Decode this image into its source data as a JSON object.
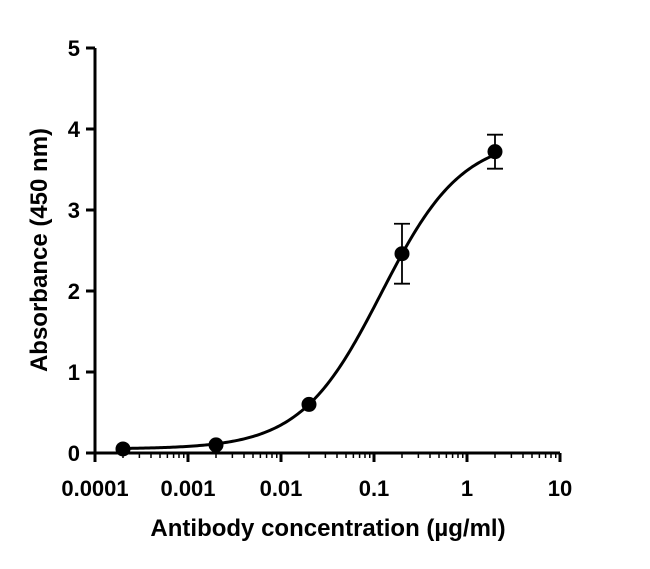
{
  "chart_data": {
    "type": "scatter",
    "title": "",
    "xlabel": "Antibody concentration (µg/ml)",
    "ylabel": "Absorbance (450 nm)",
    "x_scale": "log",
    "xlim": [
      0.0001,
      10
    ],
    "ylim": [
      0,
      5
    ],
    "x_ticks": [
      0.0001,
      0.001,
      0.01,
      0.1,
      1,
      10
    ],
    "x_tick_labels": [
      "0.0001",
      "0.001",
      "0.01",
      "0.1",
      "1",
      "10"
    ],
    "y_ticks": [
      0,
      1,
      2,
      3,
      4,
      5
    ],
    "y_tick_labels": [
      "0",
      "1",
      "2",
      "3",
      "4",
      "5"
    ],
    "grid": false,
    "legend": "none",
    "colors": {
      "data": "#000000"
    },
    "series": [
      {
        "points": [
          {
            "x": 0.0002,
            "y": 0.05,
            "err": 0.0
          },
          {
            "x": 0.002,
            "y": 0.1,
            "err": 0.0
          },
          {
            "x": 0.02,
            "y": 0.6,
            "err": 0.0
          },
          {
            "x": 0.2,
            "y": 2.46,
            "err": 0.37
          },
          {
            "x": 2,
            "y": 3.72,
            "err": 0.21
          }
        ],
        "fit": {
          "model": "4PL",
          "bottom": 0.05,
          "top": 3.9,
          "ec50": 0.12,
          "hill": 1.0
        }
      }
    ]
  }
}
